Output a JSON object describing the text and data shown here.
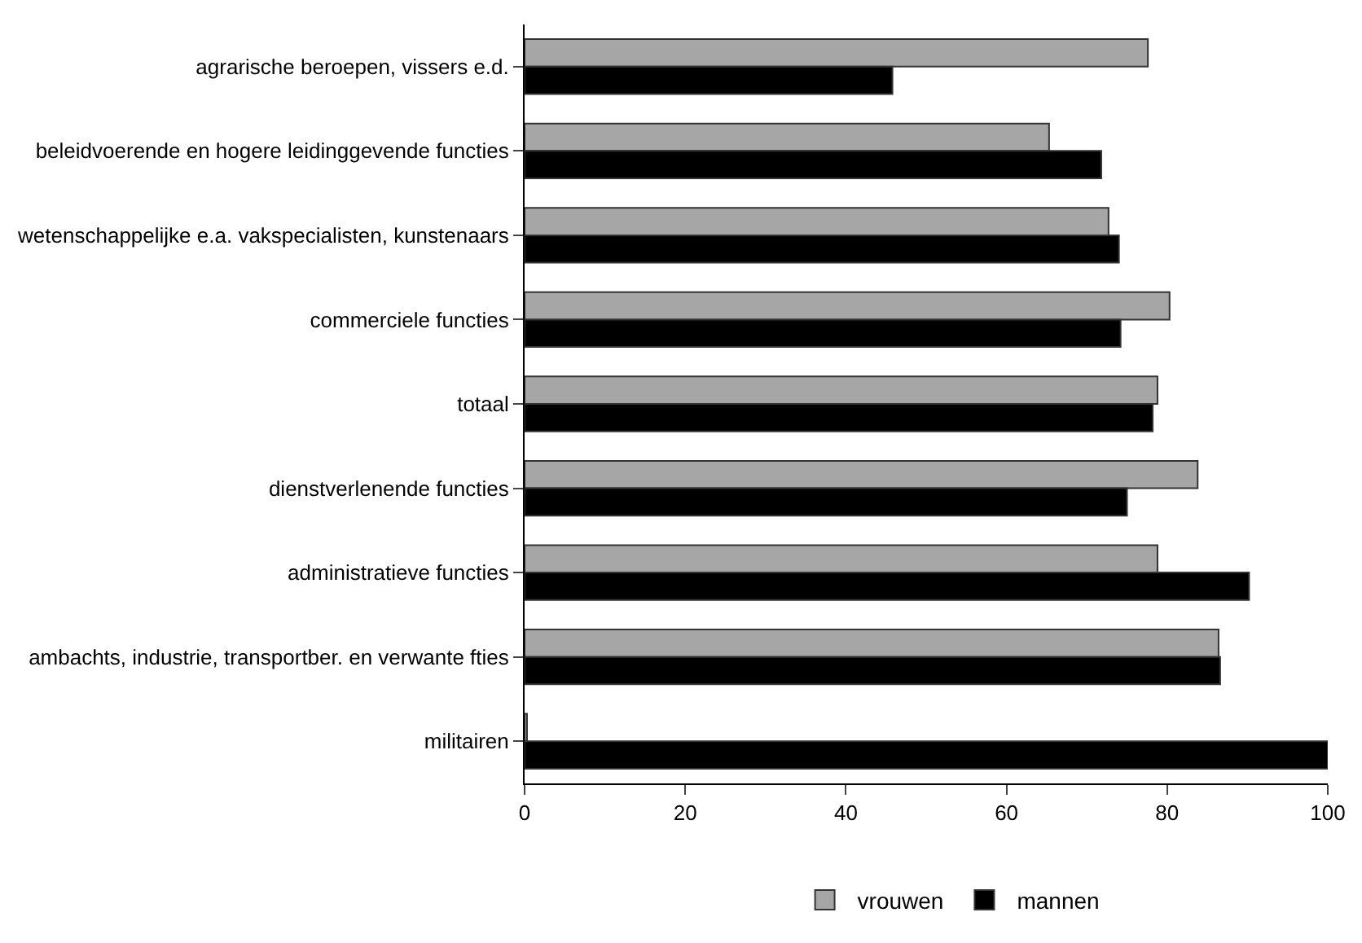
{
  "chart_data": {
    "type": "bar",
    "orientation": "horizontal",
    "categories": [
      "agrarische beroepen, vissers e.d.",
      "beleidvoerende en hogere leidinggevende functies",
      "wetenschappelijke e.a. vakspecialisten, kunstenaars",
      "commerciele functies",
      "totaal",
      "dienstverlenende functies",
      "administratieve functies",
      "ambachts, industrie, transportber. en verwante fties",
      "militairen"
    ],
    "series": [
      {
        "name": "vrouwen",
        "color": "#a6a6a6",
        "values": [
          77.6,
          65.3,
          72.7,
          80.3,
          78.8,
          83.8,
          78.8,
          86.4,
          0.3
        ]
      },
      {
        "name": "mannen",
        "color": "#000000",
        "values": [
          45.8,
          71.8,
          74.0,
          74.2,
          78.2,
          75.0,
          90.2,
          86.6,
          100
        ]
      }
    ],
    "xlim": [
      0,
      100
    ],
    "xticks": [
      0,
      20,
      40,
      60,
      80,
      100
    ],
    "legend": "bottom"
  }
}
